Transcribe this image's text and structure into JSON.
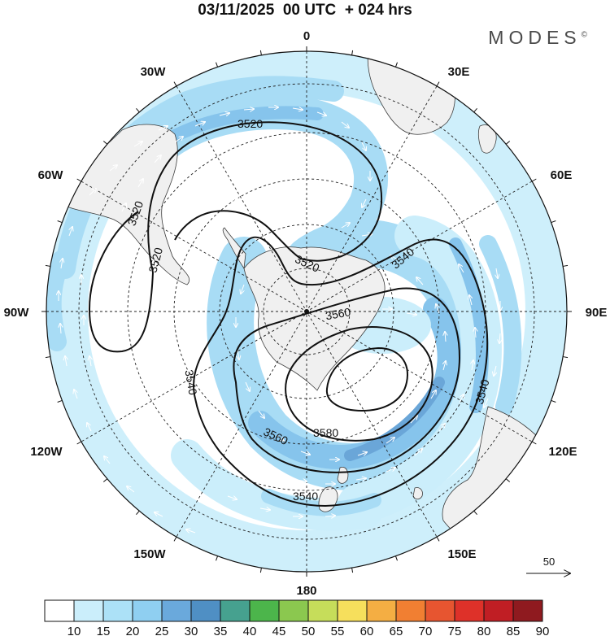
{
  "header": {
    "title": "03/11/2025  00 UTC  + 024 hrs",
    "brand": "MODES",
    "brand_mark": "©"
  },
  "map": {
    "projection": "south-polar-stereographic",
    "longitude_labels": [
      {
        "id": "0",
        "text": "0"
      },
      {
        "id": "30e",
        "text": "30E"
      },
      {
        "id": "60e",
        "text": "60E"
      },
      {
        "id": "90e",
        "text": "90E"
      },
      {
        "id": "120e",
        "text": "120E"
      },
      {
        "id": "150e",
        "text": "150E"
      },
      {
        "id": "180",
        "text": "180"
      },
      {
        "id": "150w",
        "text": "150W"
      },
      {
        "id": "120w",
        "text": "120W"
      },
      {
        "id": "90w",
        "text": "90W"
      },
      {
        "id": "60w",
        "text": "60W"
      },
      {
        "id": "30w",
        "text": "30W"
      }
    ],
    "contour_levels": [
      3520,
      3540,
      3560,
      3580
    ],
    "contour_labels": [
      "3520",
      "3520",
      "3520",
      "3520",
      "3540",
      "3540",
      "3540",
      "3540",
      "3560",
      "3560",
      "3580"
    ],
    "wind_reference": {
      "value": "50",
      "unit": "vector scale"
    }
  },
  "colorbar": {
    "ticks": [
      "10",
      "15",
      "20",
      "25",
      "30",
      "35",
      "40",
      "45",
      "50",
      "55",
      "60",
      "65",
      "70",
      "75",
      "80",
      "85",
      "90"
    ],
    "colors": [
      "#ffffff",
      "#cbeefb",
      "#ace1f7",
      "#8fcff1",
      "#6aa9dc",
      "#4f8fc4",
      "#46a18f",
      "#4cb54b",
      "#8bc84f",
      "#c6dd5a",
      "#f6df5c",
      "#f4ae43",
      "#f17f32",
      "#e75530",
      "#de3129",
      "#c01e24",
      "#8f1a1f"
    ]
  },
  "colors": {
    "land": "#f0f0f0",
    "coast": "#3c3c3c",
    "jet_light": "#cbeefb",
    "jet_mid": "#a8dcf5",
    "jet_strong": "#86c4ec",
    "jet_core": "#6aa6d8"
  }
}
